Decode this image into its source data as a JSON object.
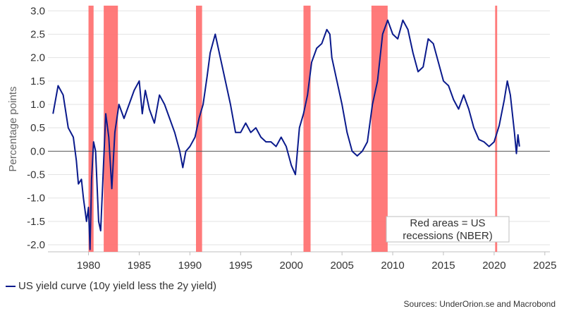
{
  "chart_data": {
    "type": "line",
    "ylabel": "Percentage points",
    "xlabel": "",
    "xlim": [
      1976,
      2025.5
    ],
    "ylim": [
      -2.15,
      3.05
    ],
    "x_ticks": [
      1980,
      1985,
      1990,
      1995,
      2000,
      2005,
      2010,
      2015,
      2020,
      2025
    ],
    "y_ticks": [
      3.0,
      2.5,
      2.0,
      1.5,
      1.0,
      0.5,
      0.0,
      -0.5,
      -1.0,
      -1.5,
      -2.0
    ],
    "y_tick_labels": [
      "3.0",
      "2.5",
      "2.0",
      "1.5",
      "1.0",
      "0.5",
      "0.0",
      "-0.5",
      "-1.0",
      "-1.5",
      "-2.0"
    ],
    "grid": true,
    "recessions": [
      [
        1980.0,
        1980.5
      ],
      [
        1981.5,
        1982.9
      ],
      [
        1990.6,
        1991.2
      ],
      [
        2001.2,
        2001.9
      ],
      [
        2007.9,
        2009.5
      ],
      [
        2020.1,
        2020.3
      ]
    ],
    "annotation": "Red areas = US recessions (NBER)",
    "annotation_lines": [
      "Red areas = US",
      "recessions (NBER)"
    ],
    "series": [
      {
        "name": "US yield curve (10y yield less the 2y yield)",
        "color": "#0a1a8c",
        "x": [
          1976.5,
          1977.0,
          1977.5,
          1978.0,
          1978.5,
          1978.8,
          1979.0,
          1979.3,
          1979.5,
          1979.8,
          1980.0,
          1980.15,
          1980.3,
          1980.5,
          1980.7,
          1981.0,
          1981.2,
          1981.5,
          1981.7,
          1982.0,
          1982.3,
          1982.6,
          1983.0,
          1983.5,
          1984.0,
          1984.5,
          1985.0,
          1985.3,
          1985.6,
          1986.0,
          1986.5,
          1987.0,
          1987.5,
          1988.0,
          1988.5,
          1989.0,
          1989.3,
          1989.6,
          1990.0,
          1990.5,
          1990.9,
          1991.3,
          1991.7,
          1992.0,
          1992.5,
          1993.0,
          1993.5,
          1994.0,
          1994.5,
          1995.0,
          1995.5,
          1996.0,
          1996.5,
          1997.0,
          1997.5,
          1998.0,
          1998.5,
          1999.0,
          1999.5,
          2000.0,
          2000.4,
          2000.8,
          2001.2,
          2001.6,
          2002.0,
          2002.5,
          2003.0,
          2003.5,
          2003.8,
          2004.0,
          2004.5,
          2005.0,
          2005.5,
          2006.0,
          2006.5,
          2007.0,
          2007.5,
          2008.0,
          2008.5,
          2009.0,
          2009.5,
          2010.0,
          2010.5,
          2011.0,
          2011.5,
          2012.0,
          2012.5,
          2013.0,
          2013.5,
          2014.0,
          2014.5,
          2015.0,
          2015.5,
          2016.0,
          2016.5,
          2017.0,
          2017.5,
          2018.0,
          2018.5,
          2019.0,
          2019.5,
          2020.0,
          2020.5,
          2021.0,
          2021.3,
          2021.6,
          2022.0,
          2022.2,
          2022.35,
          2022.5
        ],
        "y": [
          0.8,
          1.4,
          1.2,
          0.5,
          0.3,
          -0.2,
          -0.7,
          -0.6,
          -1.0,
          -1.5,
          -1.2,
          -2.1,
          -0.6,
          0.2,
          0.0,
          -1.5,
          -1.7,
          -0.2,
          0.8,
          0.3,
          -0.8,
          0.4,
          1.0,
          0.7,
          1.0,
          1.3,
          1.5,
          0.8,
          1.3,
          0.9,
          0.6,
          1.2,
          1.0,
          0.7,
          0.4,
          0.0,
          -0.35,
          0.0,
          0.1,
          0.3,
          0.7,
          1.0,
          1.6,
          2.1,
          2.5,
          2.0,
          1.5,
          1.0,
          0.4,
          0.4,
          0.6,
          0.4,
          0.5,
          0.3,
          0.2,
          0.2,
          0.1,
          0.3,
          0.1,
          -0.3,
          -0.5,
          0.5,
          0.8,
          1.2,
          1.9,
          2.2,
          2.3,
          2.6,
          2.5,
          2.0,
          1.5,
          1.0,
          0.4,
          0.0,
          -0.1,
          0.0,
          0.2,
          1.0,
          1.5,
          2.5,
          2.8,
          2.5,
          2.4,
          2.8,
          2.6,
          2.1,
          1.7,
          1.8,
          2.4,
          2.3,
          1.9,
          1.5,
          1.4,
          1.1,
          0.9,
          1.2,
          0.9,
          0.5,
          0.25,
          0.2,
          0.1,
          0.2,
          0.55,
          1.1,
          1.5,
          1.2,
          0.4,
          -0.05,
          0.35,
          0.1
        ]
      }
    ]
  },
  "legend": {
    "label": "US yield curve (10y yield less the 2y yield)"
  },
  "footer": {
    "source": "Sources: UnderOrion.se and Macrobond"
  }
}
